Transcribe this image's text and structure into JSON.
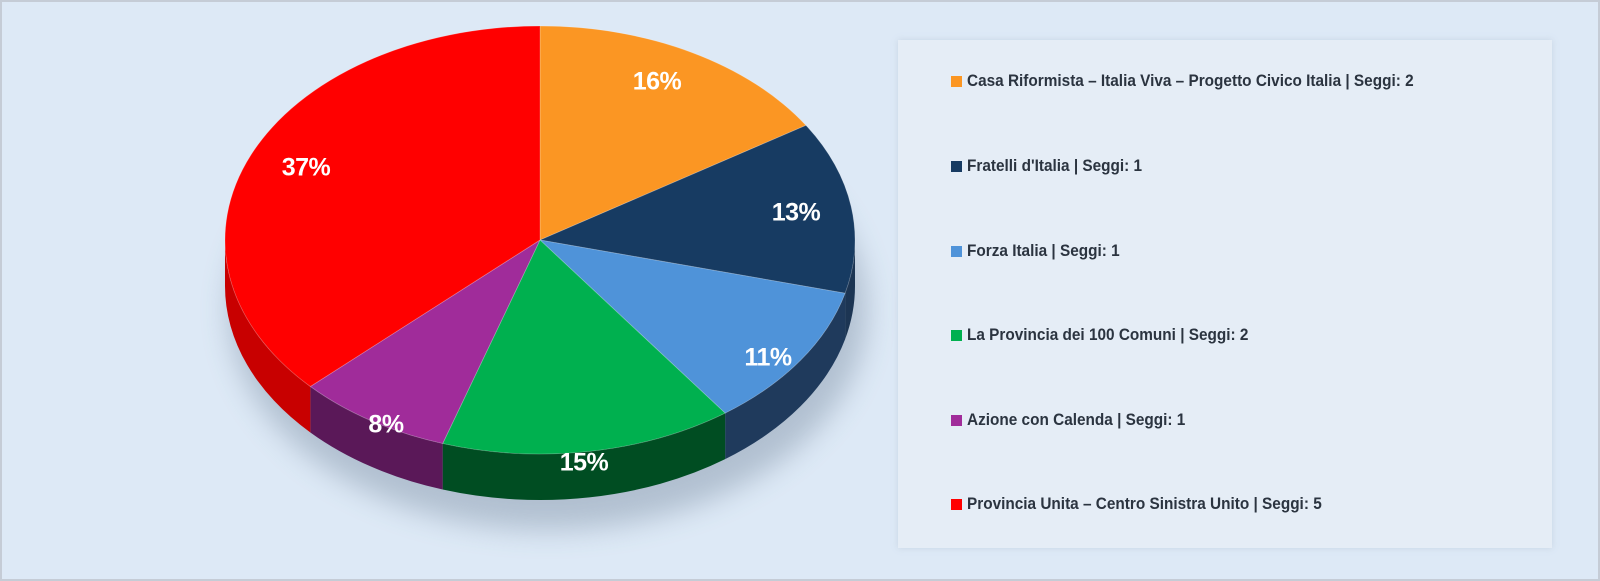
{
  "chart_data": {
    "type": "pie",
    "style": "3d-pie",
    "title": "",
    "categories": [
      "Casa Riformista – Italia Viva – Progetto Civico Italia",
      "Fratelli d'Italia",
      "Forza Italia",
      "La Provincia dei 100 Comuni",
      "Azione con Calenda",
      "Provincia Unita – Centro Sinistra Unito"
    ],
    "values": [
      16,
      13,
      11,
      15,
      8,
      37
    ],
    "seats": [
      2,
      1,
      1,
      2,
      1,
      5
    ],
    "colors": [
      "#fb9623",
      "#173b62",
      "#4f93d9",
      "#00b04f",
      "#a02c9a",
      "#ff0000"
    ],
    "side_colors": [
      "#c8751a",
      "#1c3553",
      "#1f3a5c",
      "#004d22",
      "#5a1858",
      "#c80000"
    ],
    "data_labels": [
      "16%",
      "13%",
      "11%",
      "15%",
      "8%",
      "37%"
    ],
    "legend_position": "right",
    "start_angle": "12 o'clock, clockwise"
  },
  "legend": {
    "items": [
      {
        "label": "Casa Riformista – Italia Viva – Progetto Civico Italia | Seggi: 2",
        "color": "#fb9623"
      },
      {
        "label": "Fratelli d'Italia | Seggi: 1",
        "color": "#173b62"
      },
      {
        "label": "Forza Italia | Seggi: 1",
        "color": "#4f93d9"
      },
      {
        "label": "La Provincia dei 100 Comuni | Seggi: 2",
        "color": "#00b04f"
      },
      {
        "label": "Azione con Calenda | Seggi: 1",
        "color": "#a02c9a"
      },
      {
        "label": "Provincia Unita – Centro Sinistra Unito | Seggi: 5",
        "color": "#ff0000"
      }
    ]
  },
  "labels": {
    "s0": "16%",
    "s1": "13%",
    "s2": "11%",
    "s3": "15%",
    "s4": "8%",
    "s5": "37%"
  }
}
